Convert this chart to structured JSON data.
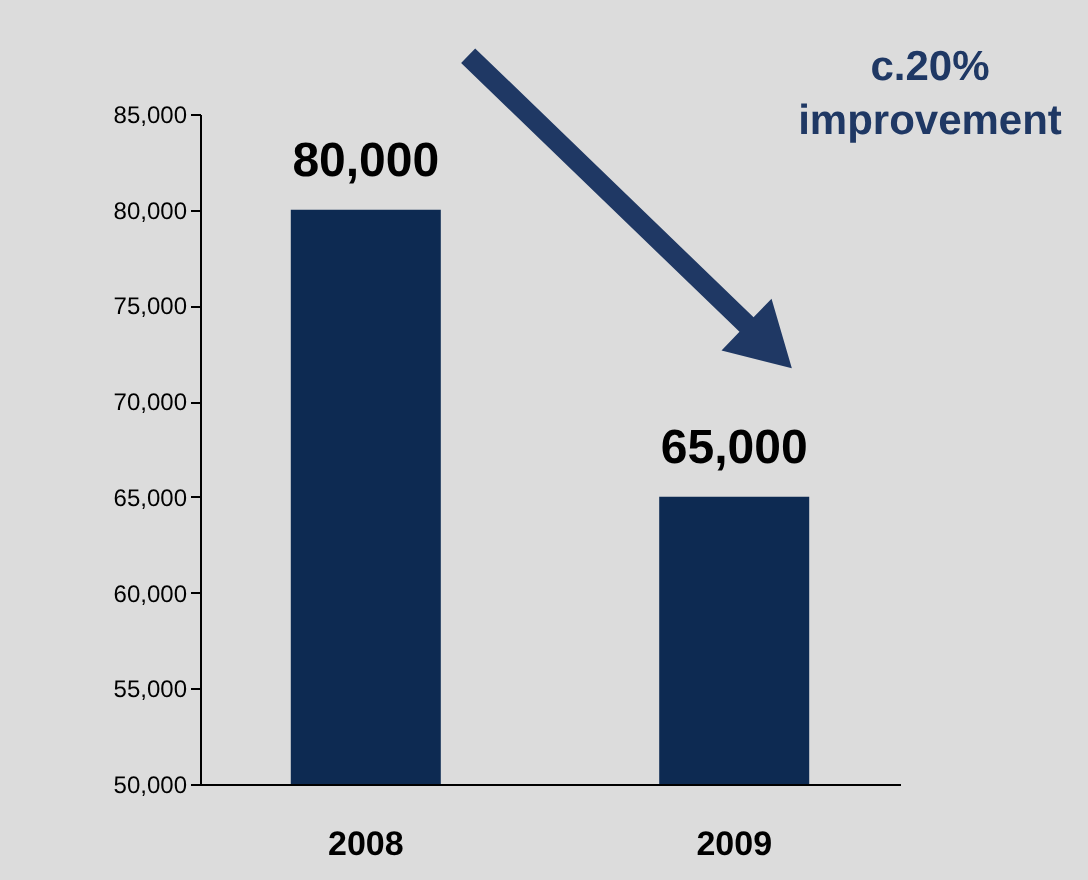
{
  "chart_data": {
    "type": "bar",
    "categories": [
      "2008",
      "2009"
    ],
    "values": [
      80000,
      65000
    ],
    "color": "#0d2a52",
    "ylim": [
      50000,
      85000
    ],
    "yticks": [
      {
        "value": 50000,
        "label": "50,000"
      },
      {
        "value": 55000,
        "label": "55,000"
      },
      {
        "value": 60000,
        "label": "60,000"
      },
      {
        "value": 65000,
        "label": "65,000"
      },
      {
        "value": 70000,
        "label": "70,000"
      },
      {
        "value": 75000,
        "label": "75,000"
      },
      {
        "value": 80000,
        "label": "80,000"
      },
      {
        "value": 85000,
        "label": "85,000"
      }
    ],
    "value_labels": [
      "80,000",
      "65,000"
    ],
    "annotations": [
      "c.20% improvement"
    ]
  }
}
